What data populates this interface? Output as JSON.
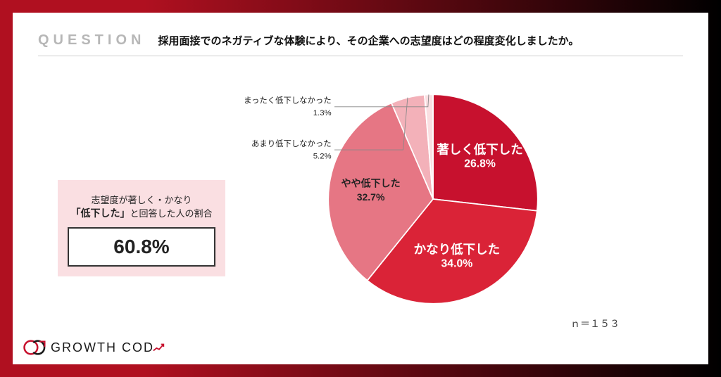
{
  "header": {
    "question_label": "QUESTION",
    "question_text": "採用面接でのネガティブな体験により、その企業への志望度はどの程度変化しましたか。"
  },
  "summary": {
    "line1": "志望度が著しく・かなり",
    "strong": "「低下した」",
    "line2_tail": "と回答した人の割合",
    "value": "60.8%",
    "box_bg": "#fadfe2",
    "value_border": "#333333"
  },
  "chart": {
    "type": "pie",
    "background": "#ffffff",
    "radius": 170,
    "start_angle_deg": 0,
    "slices": [
      {
        "label": "著しく低下した",
        "value": 26.8,
        "pct_text": "26.8%",
        "fill": "#c7112e",
        "label_fill": "#ffffff",
        "label_fontsize": 20,
        "pct_fontsize": 18,
        "label_inside": true
      },
      {
        "label": "かなり低下した",
        "value": 34.0,
        "pct_text": "34.0%",
        "fill": "#da2337",
        "label_fill": "#ffffff",
        "label_fontsize": 20,
        "pct_fontsize": 18,
        "label_inside": true
      },
      {
        "label": "やや低下した",
        "value": 32.7,
        "pct_text": "32.7%",
        "fill": "#e67684",
        "label_fill": "#222222",
        "label_fontsize": 16,
        "pct_fontsize": 16,
        "label_inside": true
      },
      {
        "label": "あまり低下しなかった",
        "value": 5.2,
        "pct_text": "5.2%",
        "fill": "#f3b1b9",
        "label_fill": "#222222",
        "label_fontsize": 13,
        "pct_fontsize": 13,
        "label_inside": false
      },
      {
        "label": "まったく低下しなかった",
        "value": 1.3,
        "pct_text": "1.3%",
        "fill": "#fadfe2",
        "label_fill": "#222222",
        "label_fontsize": 13,
        "pct_fontsize": 13,
        "label_inside": false
      }
    ],
    "leader_color": "#888888",
    "n_text": "ｎ＝１５３"
  },
  "logo": {
    "text": "GROWTH COD",
    "mark_red": "#c7112e",
    "mark_dark": "#1a1a1a"
  }
}
